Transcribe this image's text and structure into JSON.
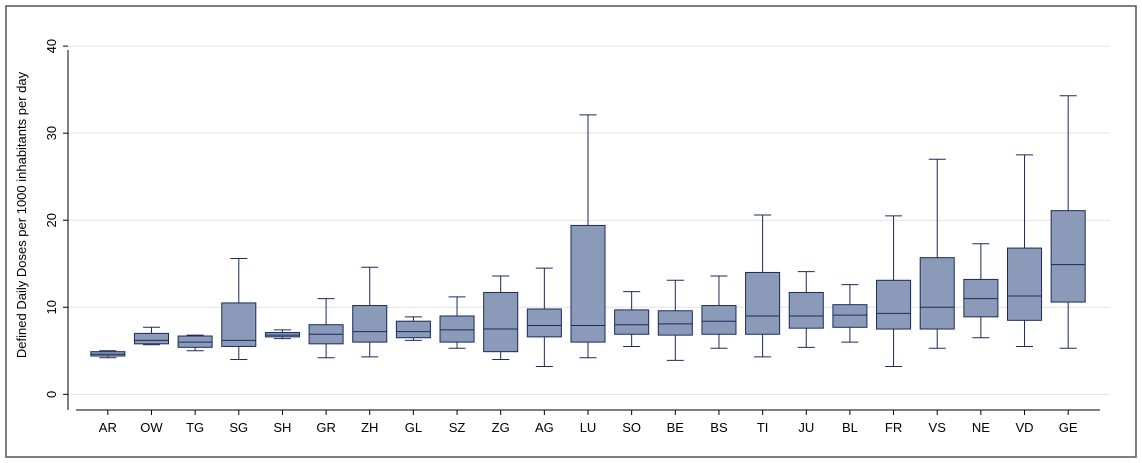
{
  "chart_data": {
    "type": "box",
    "y_label": "Defined Daily Doses per 1000 inhabitants per day",
    "categories": [
      "AR",
      "OW",
      "TG",
      "SG",
      "SH",
      "GR",
      "ZH",
      "GL",
      "SZ",
      "ZG",
      "AG",
      "LU",
      "SO",
      "BE",
      "BS",
      "TI",
      "JU",
      "BL",
      "FR",
      "VS",
      "NE",
      "VD",
      "GE"
    ],
    "min": [
      4.2,
      5.7,
      5.0,
      4.0,
      6.4,
      4.2,
      4.3,
      6.2,
      5.3,
      4.0,
      3.2,
      4.2,
      5.5,
      3.9,
      5.3,
      4.3,
      5.4,
      6.0,
      3.2,
      5.3,
      6.5,
      5.5,
      5.3
    ],
    "q1": [
      4.4,
      5.8,
      5.4,
      5.5,
      6.6,
      5.8,
      6.0,
      6.5,
      6.0,
      4.9,
      6.6,
      6.0,
      6.9,
      6.8,
      6.9,
      6.9,
      7.6,
      7.7,
      7.5,
      7.5,
      8.9,
      8.5,
      10.6
    ],
    "median": [
      4.6,
      6.2,
      6.0,
      6.2,
      6.8,
      6.9,
      7.2,
      7.2,
      7.4,
      7.5,
      7.9,
      7.9,
      8.0,
      8.1,
      8.4,
      9.0,
      9.0,
      9.1,
      9.3,
      10.0,
      11.0,
      11.3,
      14.9
    ],
    "q3": [
      4.9,
      7.0,
      6.7,
      10.5,
      7.1,
      8.0,
      10.2,
      8.4,
      9.0,
      11.7,
      9.8,
      19.4,
      9.7,
      9.6,
      10.2,
      14.0,
      11.7,
      10.3,
      13.1,
      15.7,
      13.2,
      16.8,
      21.1
    ],
    "max": [
      5.0,
      7.7,
      6.8,
      15.6,
      7.4,
      11.0,
      14.6,
      8.9,
      11.2,
      13.6,
      14.5,
      32.1,
      11.8,
      13.1,
      13.6,
      20.6,
      14.1,
      12.6,
      20.5,
      27.0,
      17.3,
      27.5,
      34.3
    ],
    "color": "#8b9ab8",
    "edge_color": "#1a2b5c",
    "ylim": [
      -1.8,
      43
    ],
    "yticks": [
      0,
      10,
      20,
      30,
      40
    ],
    "grid": true
  }
}
